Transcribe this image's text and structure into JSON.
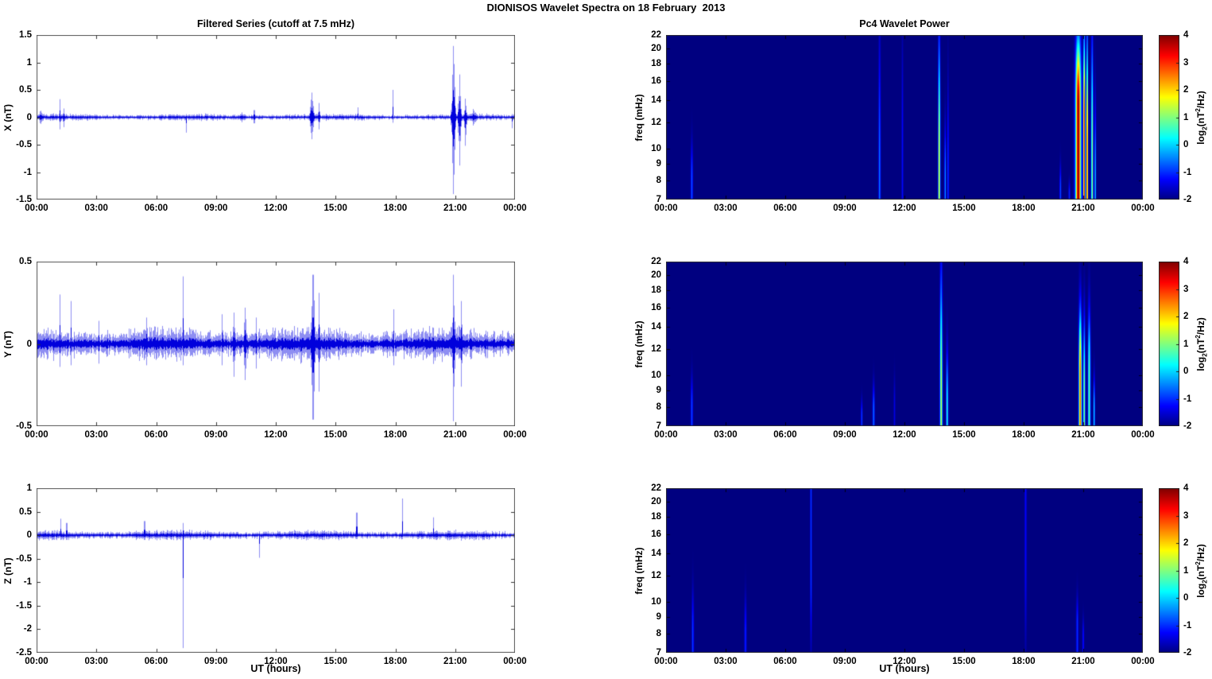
{
  "title": "DIONISOS Wavelet Spectra on 18 February  2013",
  "left_column_title": "Filtered Series (cutoff at 7.5 mHz)",
  "right_column_title": "Pc4 Wavelet Power",
  "x_axis": {
    "label": "UT (hours)",
    "ticks": [
      "00:00",
      "03:00",
      "06:00",
      "09:00",
      "12:00",
      "15:00",
      "18:00",
      "21:00",
      "00:00"
    ],
    "range_hours": [
      0,
      24
    ]
  },
  "colorbar": {
    "ticks": [
      "4",
      "3",
      "2",
      "1",
      "0",
      "-1",
      "-2"
    ],
    "clim": [
      -2,
      4
    ],
    "label_text": "log2(nT2/Hz)",
    "label_parts": {
      "prefix": "log",
      "sub": "2",
      "mid": "(nT",
      "sup": "2",
      "suffix": "/Hz)"
    },
    "colormap": "jet"
  },
  "colors": {
    "series_line": "#0000DC",
    "spectrogram_background": "#000080",
    "axis": "#555555",
    "text": "#000000"
  },
  "chart_data": [
    {
      "id": "x-series",
      "type": "line",
      "ylabel": "X (nT)",
      "ylim": [
        -1.5,
        1.5
      ],
      "yticks": [
        "1.5",
        "1",
        "0.5",
        "0",
        "-0.5",
        "-1",
        "-1.5"
      ],
      "noise_band": 0.05,
      "seed": 7,
      "events": [
        {
          "t": 0.2,
          "up": 0.12,
          "down": 0.12,
          "w": 0.12
        },
        {
          "t": 1.15,
          "up": 0.33,
          "down": 0.22,
          "w": 0.03
        },
        {
          "t": 1.35,
          "up": 0.16,
          "down": 0.18,
          "w": 0.04
        },
        {
          "t": 7.5,
          "up": 0.04,
          "down": 0.28,
          "w": 0.02
        },
        {
          "t": 10.3,
          "up": 0.09,
          "down": 0.09,
          "w": 0.2
        },
        {
          "t": 10.9,
          "up": 0.13,
          "down": 0.11,
          "w": 0.05
        },
        {
          "t": 13.8,
          "up": 0.45,
          "down": 0.4,
          "w": 0.1
        },
        {
          "t": 14.15,
          "up": 0.26,
          "down": 0.22,
          "w": 0.05
        },
        {
          "t": 16.1,
          "up": 0.18,
          "down": 0.06,
          "w": 0.02
        },
        {
          "t": 17.85,
          "up": 0.5,
          "down": 0.1,
          "w": 0.02
        },
        {
          "t": 20.9,
          "up": 1.3,
          "down": 1.4,
          "w": 0.09
        },
        {
          "t": 21.2,
          "up": 0.78,
          "down": 0.88,
          "w": 0.07
        },
        {
          "t": 21.5,
          "up": 0.34,
          "down": 0.52,
          "w": 0.06
        },
        {
          "t": 21.9,
          "up": 0.15,
          "down": 0.15,
          "w": 0.2
        },
        {
          "t": 23.85,
          "up": 0.06,
          "down": 0.2,
          "w": 0.02
        }
      ]
    },
    {
      "id": "y-series",
      "type": "line",
      "ylabel": "Y (nT)",
      "ylim": [
        -0.5,
        0.5
      ],
      "yticks": [
        "0.5",
        "0",
        "-0.5"
      ],
      "noise_band": 0.085,
      "seed": 21,
      "events": [
        {
          "t": 1.15,
          "up": 0.3,
          "down": 0.14,
          "w": 0.03
        },
        {
          "t": 1.7,
          "up": 0.26,
          "down": 0.13,
          "w": 0.02
        },
        {
          "t": 3.1,
          "up": 0.14,
          "down": 0.12,
          "w": 0.05
        },
        {
          "t": 5.5,
          "up": 0.16,
          "down": 0.13,
          "w": 0.08
        },
        {
          "t": 7.35,
          "up": 0.41,
          "down": 0.13,
          "w": 0.02
        },
        {
          "t": 9.3,
          "up": 0.18,
          "down": 0.13,
          "w": 0.03
        },
        {
          "t": 9.9,
          "up": 0.19,
          "down": 0.2,
          "w": 0.07
        },
        {
          "t": 10.45,
          "up": 0.22,
          "down": 0.22,
          "w": 0.07
        },
        {
          "t": 11.0,
          "up": 0.16,
          "down": 0.15,
          "w": 0.05
        },
        {
          "t": 13.85,
          "up": 0.42,
          "down": 0.46,
          "w": 0.1
        },
        {
          "t": 14.15,
          "up": 0.31,
          "down": 0.29,
          "w": 0.05
        },
        {
          "t": 17.9,
          "up": 0.21,
          "down": 0.13,
          "w": 0.02
        },
        {
          "t": 20.9,
          "up": 0.42,
          "down": 0.47,
          "w": 0.07
        },
        {
          "t": 21.3,
          "up": 0.26,
          "down": 0.26,
          "w": 0.06
        }
      ]
    },
    {
      "id": "z-series",
      "type": "line",
      "ylabel": "Z (nT)",
      "ylim": [
        -2.5,
        1
      ],
      "yticks": [
        "1",
        "0.5",
        "0",
        "-0.5",
        "-1",
        "-1.5",
        "-2",
        "-2.5"
      ],
      "noise_band": 0.085,
      "seed": 33,
      "events": [
        {
          "t": 1.2,
          "up": 0.35,
          "down": 0.1,
          "w": 0.02
        },
        {
          "t": 1.5,
          "up": 0.26,
          "down": 0.1,
          "w": 0.02
        },
        {
          "t": 5.4,
          "up": 0.3,
          "down": 0.1,
          "w": 0.02
        },
        {
          "t": 7.35,
          "up": 0.26,
          "down": 2.4,
          "w": 0.015
        },
        {
          "t": 11.15,
          "up": 0.08,
          "down": 0.48,
          "w": 0.015
        },
        {
          "t": 16.05,
          "up": 0.48,
          "down": 0.08,
          "w": 0.015
        },
        {
          "t": 18.35,
          "up": 0.78,
          "down": 0.08,
          "w": 0.015
        },
        {
          "t": 19.9,
          "up": 0.38,
          "down": 0.08,
          "w": 0.015
        }
      ]
    },
    {
      "id": "x-wavelet-power",
      "type": "heatmap",
      "ylabel": "freq (mHz)",
      "yscale": "log",
      "ylim": [
        7,
        22
      ],
      "yticks": [
        "22",
        "20",
        "18",
        "16",
        "14",
        "12",
        "10",
        "9",
        "8",
        "7"
      ],
      "clim": [
        -2,
        4
      ],
      "background_power": -2,
      "events": [
        {
          "t": 1.3,
          "w": 0.05,
          "fmax": 10.5,
          "peak": -0.7,
          "knee": 8
        },
        {
          "t": 10.75,
          "w": 0.05,
          "fmax": 22,
          "peak": -0.55,
          "knee": 8.5
        },
        {
          "t": 11.9,
          "w": 0.04,
          "fmax": 22,
          "peak": -1.2,
          "knee": 10
        },
        {
          "t": 13.75,
          "w": 0.05,
          "fmax": 22,
          "peak": 1.7,
          "knee": 9.5
        },
        {
          "t": 14.05,
          "w": 0.04,
          "fmax": 12,
          "peak": -0.4,
          "knee": 8
        },
        {
          "t": 14.2,
          "w": 0.04,
          "fmax": 16,
          "peak": -1.0,
          "knee": 8
        },
        {
          "t": 19.85,
          "w": 0.04,
          "fmax": 9,
          "peak": -0.8,
          "knee": 7.5
        },
        {
          "t": 20.3,
          "w": 0.04,
          "fmax": 8,
          "peak": -1.0,
          "knee": 7.3
        },
        {
          "t": 20.75,
          "w": 0.13,
          "fmax": 22,
          "peak": 3.9,
          "knee": 13.5
        },
        {
          "t": 21.05,
          "w": 0.05,
          "fmax": 22,
          "peak": 3.3,
          "knee": 12
        },
        {
          "t": 21.2,
          "w": 0.04,
          "fmax": 22,
          "peak": 2.0,
          "knee": 10
        },
        {
          "t": 21.45,
          "w": 0.05,
          "fmax": 22,
          "peak": 1.1,
          "knee": 10
        },
        {
          "t": 21.6,
          "w": 0.04,
          "fmax": 14,
          "peak": -0.3,
          "knee": 8
        }
      ]
    },
    {
      "id": "y-wavelet-power",
      "type": "heatmap",
      "ylabel": "freq (mHz)",
      "yscale": "log",
      "ylim": [
        7,
        22
      ],
      "yticks": [
        "22",
        "20",
        "18",
        "16",
        "14",
        "12",
        "10",
        "9",
        "8",
        "7"
      ],
      "clim": [
        -2,
        4
      ],
      "background_power": -2,
      "events": [
        {
          "t": 1.3,
          "w": 0.05,
          "fmax": 10,
          "peak": -0.8,
          "knee": 8
        },
        {
          "t": 9.85,
          "w": 0.04,
          "fmax": 8.5,
          "peak": -0.9,
          "knee": 7.5
        },
        {
          "t": 10.45,
          "w": 0.05,
          "fmax": 9.5,
          "peak": -0.6,
          "knee": 7.8
        },
        {
          "t": 11.5,
          "w": 0.04,
          "fmax": 10,
          "peak": -1.4,
          "knee": 8
        },
        {
          "t": 13.85,
          "w": 0.06,
          "fmax": 21,
          "peak": 1.4,
          "knee": 9
        },
        {
          "t": 14.15,
          "w": 0.05,
          "fmax": 12,
          "peak": 0.4,
          "knee": 8
        },
        {
          "t": 20.85,
          "w": 0.07,
          "fmax": 16,
          "peak": 2.7,
          "knee": 10
        },
        {
          "t": 21.05,
          "w": 0.05,
          "fmax": 15,
          "peak": 1.0,
          "knee": 9
        },
        {
          "t": 21.3,
          "w": 0.06,
          "fmax": 16,
          "peak": 0.9,
          "knee": 10
        },
        {
          "t": 21.55,
          "w": 0.04,
          "fmax": 10,
          "peak": 0.0,
          "knee": 7.8
        }
      ]
    },
    {
      "id": "z-wavelet-power",
      "type": "heatmap",
      "ylabel": "freq (mHz)",
      "yscale": "log",
      "ylim": [
        7,
        22
      ],
      "yticks": [
        "22",
        "20",
        "18",
        "16",
        "14",
        "12",
        "10",
        "9",
        "8",
        "7"
      ],
      "clim": [
        -2,
        4
      ],
      "background_power": -2,
      "events": [
        {
          "t": 1.35,
          "w": 0.05,
          "fmax": 11,
          "peak": -0.9,
          "knee": 8
        },
        {
          "t": 4.0,
          "w": 0.05,
          "fmax": 10.5,
          "peak": -1.0,
          "knee": 8
        },
        {
          "t": 7.3,
          "w": 0.04,
          "fmax": 22,
          "peak": -0.9,
          "knee": 12,
          "anchor": "top"
        },
        {
          "t": 18.1,
          "w": 0.05,
          "fmax": 22,
          "peak": -1.25,
          "knee": 14,
          "anchor": "top"
        },
        {
          "t": 20.7,
          "w": 0.05,
          "fmax": 10.5,
          "peak": -0.95,
          "knee": 8.5
        },
        {
          "t": 21.0,
          "w": 0.04,
          "fmax": 9,
          "peak": -1.3,
          "knee": 7.8
        }
      ]
    }
  ]
}
